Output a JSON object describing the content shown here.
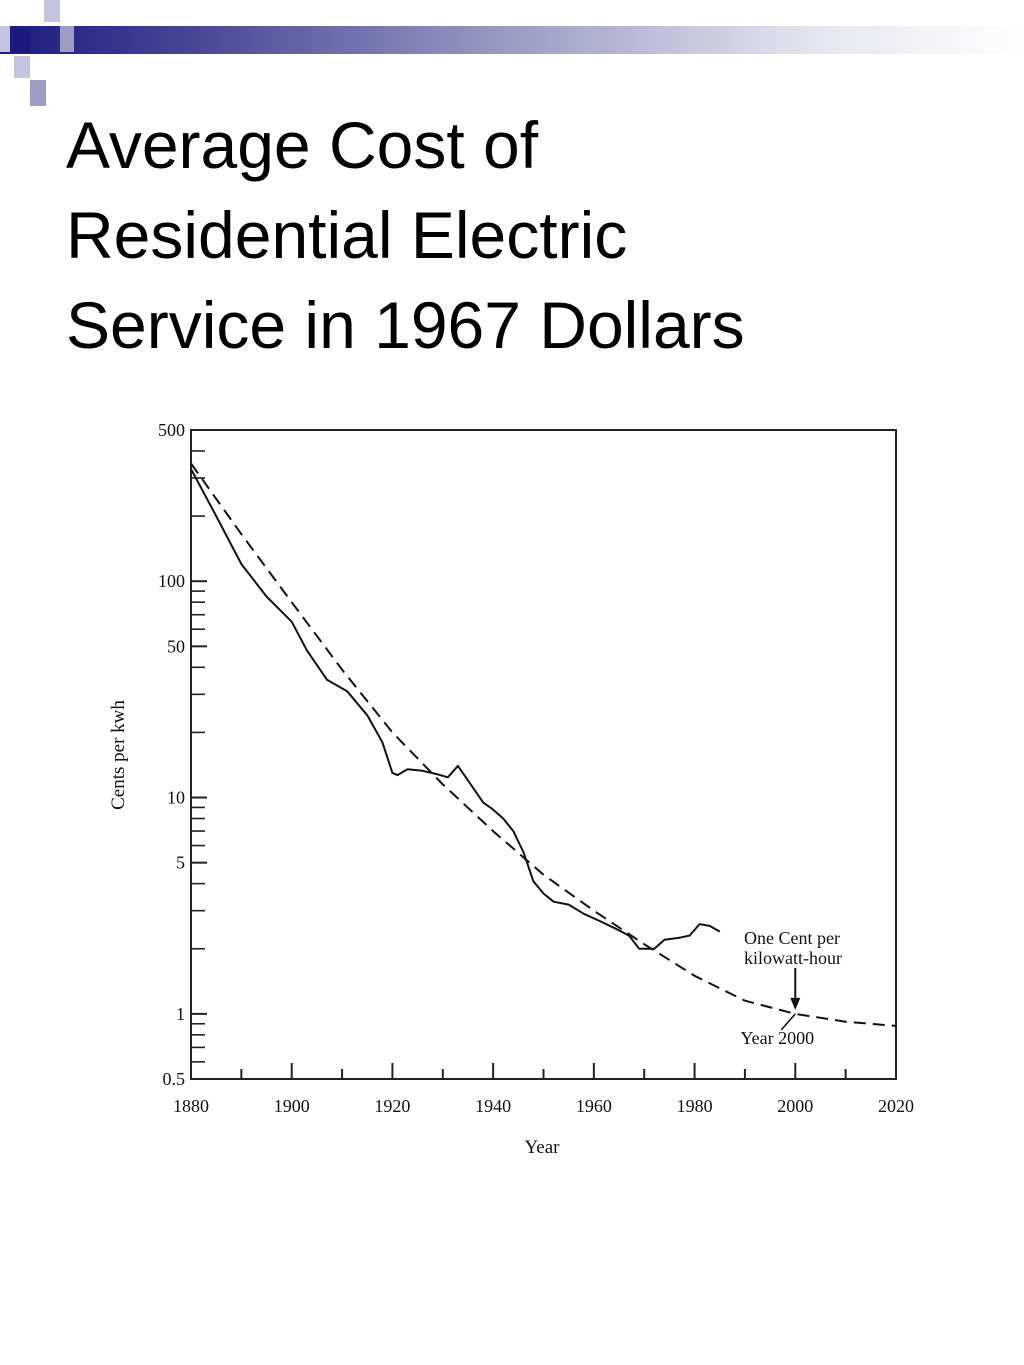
{
  "slide": {
    "title_lines": [
      "Average Cost of",
      "Residential Electric",
      "Service in 1967 Dollars"
    ],
    "accent_colors": [
      "#1a1a7e",
      "#9c9cc4"
    ]
  },
  "chart_data": {
    "type": "line",
    "title": "",
    "xlabel": "Year",
    "ylabel": "Cents per kwh",
    "xlim": [
      1880,
      2020
    ],
    "ylim": [
      0.5,
      500
    ],
    "yscale": "log",
    "x_ticks": [
      "1880",
      "1900",
      "1920",
      "1940",
      "1960",
      "1980",
      "2000",
      "2020"
    ],
    "y_ticks": [
      "500",
      "100",
      "50",
      "10",
      "5",
      "1",
      "0.5"
    ],
    "series": [
      {
        "style": "solid",
        "points": [
          [
            1880,
            330
          ],
          [
            1885,
            200
          ],
          [
            1890,
            120
          ],
          [
            1895,
            85
          ],
          [
            1900,
            65
          ],
          [
            1903,
            48
          ],
          [
            1907,
            35
          ],
          [
            1911,
            31
          ],
          [
            1915,
            24
          ],
          [
            1918,
            18
          ],
          [
            1920,
            13
          ],
          [
            1921,
            12.7
          ],
          [
            1923,
            13.5
          ],
          [
            1926,
            13.3
          ],
          [
            1929,
            12.8
          ],
          [
            1931,
            12.4
          ],
          [
            1933,
            14
          ],
          [
            1935,
            12
          ],
          [
            1938,
            9.5
          ],
          [
            1940,
            8.8
          ],
          [
            1942,
            8
          ],
          [
            1944,
            7
          ],
          [
            1946,
            5.6
          ],
          [
            1948,
            4.1
          ],
          [
            1950,
            3.6
          ],
          [
            1952,
            3.3
          ],
          [
            1955,
            3.2
          ],
          [
            1958,
            2.9
          ],
          [
            1961,
            2.7
          ],
          [
            1964,
            2.5
          ],
          [
            1967,
            2.3
          ],
          [
            1969,
            2.0
          ],
          [
            1972,
            2.0
          ],
          [
            1974,
            2.2
          ],
          [
            1977,
            2.25
          ],
          [
            1979,
            2.3
          ],
          [
            1981,
            2.6
          ],
          [
            1983,
            2.55
          ],
          [
            1985,
            2.4
          ]
        ]
      },
      {
        "style": "dashed",
        "points": [
          [
            1880,
            350
          ],
          [
            1890,
            165
          ],
          [
            1900,
            80
          ],
          [
            1910,
            39
          ],
          [
            1920,
            20
          ],
          [
            1930,
            11.5
          ],
          [
            1940,
            7
          ],
          [
            1950,
            4.4
          ],
          [
            1960,
            3.0
          ],
          [
            1970,
            2.1
          ],
          [
            1980,
            1.5
          ],
          [
            1990,
            1.15
          ],
          [
            2000,
            1.0
          ],
          [
            2010,
            0.92
          ],
          [
            2020,
            0.88
          ]
        ]
      }
    ],
    "annotations": [
      {
        "text_lines": [
          "One Cent per",
          "kilowatt-hour"
        ],
        "x": 2000,
        "y": 1.0
      },
      {
        "text": "Year 2000",
        "x": 2000,
        "y": 1.0
      }
    ]
  }
}
